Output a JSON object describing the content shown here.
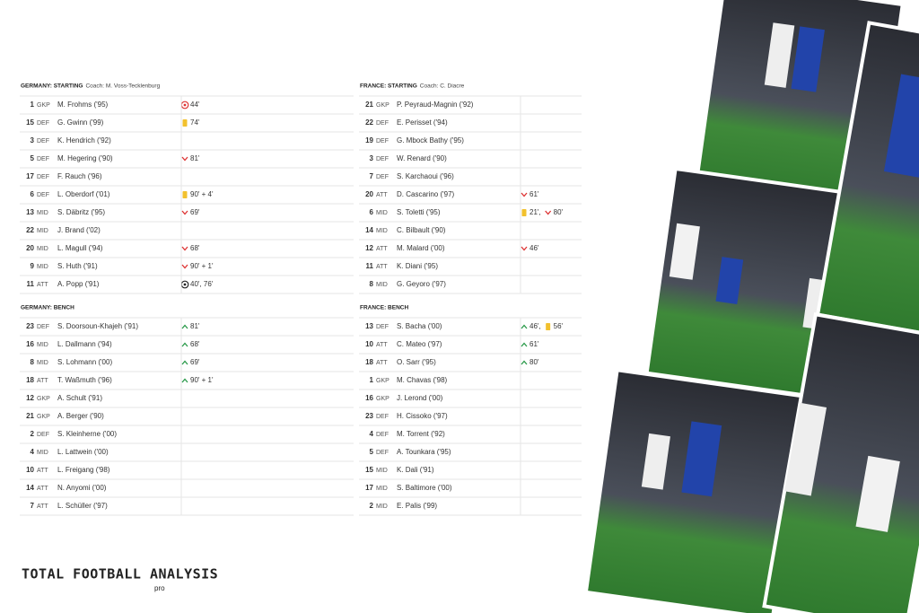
{
  "sections": [
    {
      "title": "GERMANY: STARTING",
      "coach": "Coach: M. Voss-Tecklenburg",
      "rows": [
        [
          1,
          "GKP",
          "M. Frohms ('95)",
          [
            {
              "icon": "own-goal",
              "text": "44'"
            }
          ]
        ],
        [
          15,
          "DEF",
          "G. Gwinn ('99)",
          [
            {
              "icon": "yellow",
              "text": "74'"
            }
          ]
        ],
        [
          3,
          "DEF",
          "K. Hendrich ('92)",
          []
        ],
        [
          5,
          "DEF",
          "M. Hegering ('90)",
          [
            {
              "icon": "off",
              "text": "81'"
            }
          ]
        ],
        [
          17,
          "DEF",
          "F. Rauch ('96)",
          []
        ],
        [
          6,
          "DEF",
          "L. Oberdorf ('01)",
          [
            {
              "icon": "yellow",
              "text": "90' + 4'"
            }
          ]
        ],
        [
          13,
          "MID",
          "S. Däbritz ('95)",
          [
            {
              "icon": "off",
              "text": "69'"
            }
          ]
        ],
        [
          22,
          "MID",
          "J. Brand ('02)",
          []
        ],
        [
          20,
          "MID",
          "L. Magull ('94)",
          [
            {
              "icon": "off",
              "text": "68'"
            }
          ]
        ],
        [
          9,
          "MID",
          "S. Huth ('91)",
          [
            {
              "icon": "off",
              "text": "90' + 1'"
            }
          ]
        ],
        [
          11,
          "ATT",
          "A. Popp ('91)",
          [
            {
              "icon": "goal",
              "text": "40', 76'"
            }
          ]
        ]
      ]
    },
    {
      "title": "FRANCE: STARTING",
      "coach": "Coach: C. Diacre",
      "rows": [
        [
          21,
          "GKP",
          "P. Peyraud-Magnin ('92)",
          []
        ],
        [
          22,
          "DEF",
          "E. Perisset ('94)",
          []
        ],
        [
          19,
          "DEF",
          "G. Mbock Bathy ('95)",
          []
        ],
        [
          3,
          "DEF",
          "W. Renard ('90)",
          []
        ],
        [
          7,
          "DEF",
          "S. Karchaoui ('96)",
          []
        ],
        [
          20,
          "ATT",
          "D. Cascarino ('97)",
          [
            {
              "icon": "off",
              "text": "61'"
            }
          ]
        ],
        [
          6,
          "MID",
          "S. Toletti ('95)",
          [
            {
              "icon": "yellow",
              "text": "21',"
            },
            {
              "icon": "off",
              "text": "80'"
            }
          ]
        ],
        [
          14,
          "MID",
          "C. Bilbault ('90)",
          []
        ],
        [
          12,
          "ATT",
          "M. Malard ('00)",
          [
            {
              "icon": "off",
              "text": "46'"
            }
          ]
        ],
        [
          11,
          "ATT",
          "K. Diani ('95)",
          []
        ],
        [
          8,
          "MID",
          "G. Geyoro ('97)",
          []
        ]
      ]
    },
    {
      "title": "GERMANY: BENCH",
      "rows": [
        [
          23,
          "DEF",
          "S. Doorsoun-Khajeh ('91)",
          [
            {
              "icon": "on",
              "text": "81'"
            }
          ]
        ],
        [
          16,
          "MID",
          "L. Dallmann ('94)",
          [
            {
              "icon": "on",
              "text": "68'"
            }
          ]
        ],
        [
          8,
          "MID",
          "S. Lohmann ('00)",
          [
            {
              "icon": "on",
              "text": "69'"
            }
          ]
        ],
        [
          18,
          "ATT",
          "T. Waßmuth ('96)",
          [
            {
              "icon": "on",
              "text": "90' + 1'"
            }
          ]
        ],
        [
          12,
          "GKP",
          "A. Schult ('91)",
          []
        ],
        [
          21,
          "GKP",
          "A. Berger ('90)",
          []
        ],
        [
          2,
          "DEF",
          "S. Kleinherne ('00)",
          []
        ],
        [
          4,
          "MID",
          "L. Lattwein ('00)",
          []
        ],
        [
          10,
          "ATT",
          "L. Freigang ('98)",
          []
        ],
        [
          14,
          "ATT",
          "N. Anyomi ('00)",
          []
        ],
        [
          7,
          "ATT",
          "L. Schüller ('97)",
          []
        ]
      ]
    },
    {
      "title": "FRANCE: BENCH",
      "rows": [
        [
          13,
          "DEF",
          "S. Bacha ('00)",
          [
            {
              "icon": "on",
              "text": "46',"
            },
            {
              "icon": "yellow",
              "text": "56'"
            }
          ]
        ],
        [
          10,
          "ATT",
          "C. Mateo ('97)",
          [
            {
              "icon": "on",
              "text": "61'"
            }
          ]
        ],
        [
          18,
          "ATT",
          "O. Sarr ('95)",
          [
            {
              "icon": "on",
              "text": "80'"
            }
          ]
        ],
        [
          1,
          "GKP",
          "M. Chavas ('98)",
          []
        ],
        [
          16,
          "GKP",
          "J. Lerond ('00)",
          []
        ],
        [
          23,
          "DEF",
          "H. Cissoko ('97)",
          []
        ],
        [
          4,
          "DEF",
          "M. Torrent ('92)",
          []
        ],
        [
          5,
          "DEF",
          "A. Tounkara ('95)",
          []
        ],
        [
          15,
          "MID",
          "K. Dali ('91)",
          []
        ],
        [
          17,
          "MID",
          "S. Baltimore ('00)",
          []
        ],
        [
          2,
          "MID",
          "E. Palis ('99)",
          []
        ]
      ]
    }
  ],
  "logo": {
    "name": "TOTAL FOOTBALL ANALYSIS",
    "tag": "pro"
  }
}
